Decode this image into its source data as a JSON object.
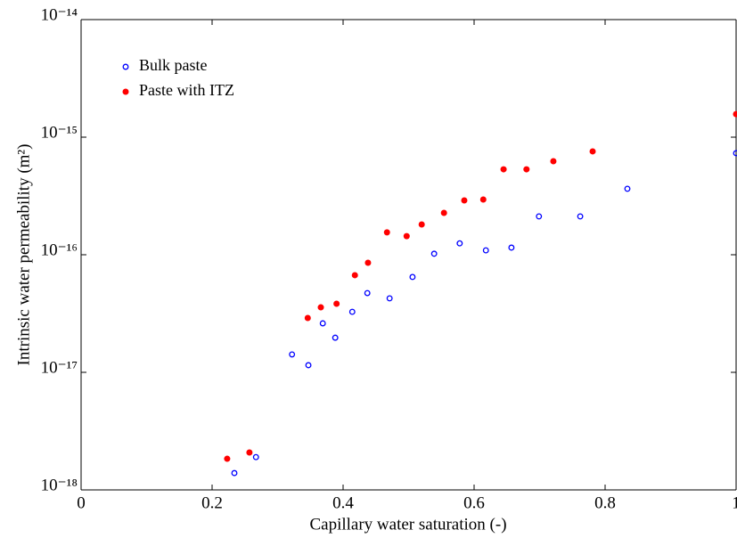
{
  "chart_data": {
    "type": "scatter",
    "xlabel": "Capillary water saturation (-)",
    "ylabel": "Intrinsic water permeability (m²)",
    "xlim": [
      0,
      1
    ],
    "xticks": [
      0,
      0.2,
      0.4,
      0.6,
      0.8,
      1
    ],
    "ylim": [
      1e-18,
      1e-14
    ],
    "yscale": "log",
    "yticks": [
      {
        "value": 1e-18,
        "label": "10⁻¹⁸"
      },
      {
        "value": 1e-17,
        "label": "10⁻¹⁷"
      },
      {
        "value": 1e-16,
        "label": "10⁻¹⁶"
      },
      {
        "value": 1e-15,
        "label": "10⁻¹⁵"
      },
      {
        "value": 1e-14,
        "label": "10⁻¹⁴"
      }
    ],
    "legend": "upper left",
    "series": [
      {
        "name": "Bulk paste",
        "color": "#0000ff",
        "marker": "open",
        "x": [
          0.234,
          0.267,
          0.322,
          0.347,
          0.369,
          0.388,
          0.414,
          0.437,
          0.471,
          0.506,
          0.539,
          0.578,
          0.618,
          0.657,
          0.699,
          0.762,
          0.834,
          1.0
        ],
        "values": [
          1.39e-18,
          1.9e-18,
          1.42e-17,
          1.15e-17,
          2.61e-17,
          1.97e-17,
          3.27e-17,
          4.72e-17,
          4.26e-17,
          6.47e-17,
          1.02e-16,
          1.25e-16,
          1.09e-16,
          1.15e-16,
          2.12e-16,
          2.12e-16,
          3.64e-16,
          7.31e-16
        ]
      },
      {
        "name": "Paste with ITZ",
        "color": "#ff0000",
        "marker": "filled",
        "x": [
          0.223,
          0.257,
          0.346,
          0.366,
          0.39,
          0.418,
          0.438,
          0.467,
          0.497,
          0.52,
          0.554,
          0.585,
          0.614,
          0.645,
          0.68,
          0.721,
          0.781,
          1.0
        ],
        "values": [
          1.84e-18,
          2.08e-18,
          2.9e-17,
          3.57e-17,
          3.83e-17,
          6.7e-17,
          8.55e-17,
          1.55e-16,
          1.44e-16,
          1.81e-16,
          2.27e-16,
          2.9e-16,
          2.95e-16,
          5.33e-16,
          5.33e-16,
          6.24e-16,
          7.57e-16,
          1.57e-15
        ]
      }
    ]
  }
}
